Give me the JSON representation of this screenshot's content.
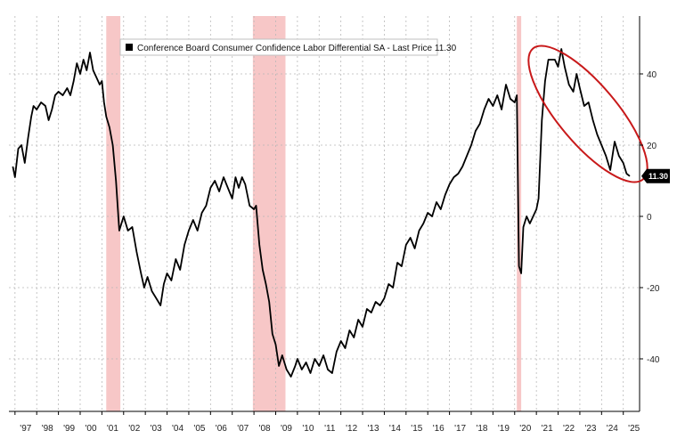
{
  "chart_data": {
    "type": "line",
    "title": "",
    "xlabel": "",
    "ylabel": "",
    "legend": "Conference Board Consumer Confidence Labor Differential SA - Last Price 11.30",
    "legend_position": "top-left",
    "last_value_label": "11.30",
    "last_value": 11.3,
    "ylim": [
      -54,
      54
    ],
    "y_ticks": [
      40,
      20,
      0,
      -20,
      -40
    ],
    "y_tick_labels": [
      "40",
      "20",
      "0",
      "-20",
      "-40"
    ],
    "x_ticks": [
      1997,
      1998,
      1999,
      2000,
      2001,
      2002,
      2003,
      2004,
      2005,
      2006,
      2007,
      2008,
      2009,
      2010,
      2011,
      2012,
      2013,
      2014,
      2015,
      2016,
      2017,
      2018,
      2019,
      2020,
      2021,
      2022,
      2023,
      2024,
      2025
    ],
    "x_tick_labels": [
      "'97",
      "'98",
      "'99",
      "'00",
      "'01",
      "'02",
      "'03",
      "'04",
      "'05",
      "'06",
      "'07",
      "'08",
      "'09",
      "'10",
      "'11",
      "'12",
      "'13",
      "'14",
      "'15",
      "'16",
      "'17",
      "'18",
      "'19",
      "'20",
      "'21",
      "'22",
      "'23",
      "'24",
      "'25"
    ],
    "grid": true,
    "recessions": [
      {
        "start": 2001.2,
        "end": 2001.85
      },
      {
        "start": 2007.95,
        "end": 2009.45
      },
      {
        "start": 2020.1,
        "end": 2020.3
      }
    ],
    "series": [
      {
        "name": "Conference Board Consumer Confidence Labor Differential SA",
        "color": "#000000",
        "points": [
          [
            1996.9,
            14
          ],
          [
            1997.0,
            11
          ],
          [
            1997.15,
            19
          ],
          [
            1997.3,
            20
          ],
          [
            1997.45,
            15
          ],
          [
            1997.6,
            22
          ],
          [
            1997.75,
            28
          ],
          [
            1997.85,
            31
          ],
          [
            1998.0,
            30
          ],
          [
            1998.2,
            32
          ],
          [
            1998.4,
            31
          ],
          [
            1998.55,
            27
          ],
          [
            1998.7,
            30
          ],
          [
            1998.85,
            34
          ],
          [
            1999.0,
            35
          ],
          [
            1999.2,
            34
          ],
          [
            1999.4,
            36
          ],
          [
            1999.55,
            34
          ],
          [
            1999.7,
            38
          ],
          [
            1999.85,
            43
          ],
          [
            2000.0,
            40
          ],
          [
            2000.15,
            44
          ],
          [
            2000.3,
            41
          ],
          [
            2000.45,
            46
          ],
          [
            2000.6,
            41
          ],
          [
            2000.75,
            39
          ],
          [
            2000.9,
            37
          ],
          [
            2001.0,
            38
          ],
          [
            2001.1,
            32
          ],
          [
            2001.2,
            28
          ],
          [
            2001.35,
            25
          ],
          [
            2001.5,
            20
          ],
          [
            2001.65,
            10
          ],
          [
            2001.8,
            -4
          ],
          [
            2002.0,
            0
          ],
          [
            2002.2,
            -4
          ],
          [
            2002.4,
            -3
          ],
          [
            2002.6,
            -10
          ],
          [
            2002.8,
            -16
          ],
          [
            2002.95,
            -20
          ],
          [
            2003.1,
            -17
          ],
          [
            2003.3,
            -21
          ],
          [
            2003.5,
            -23
          ],
          [
            2003.7,
            -25
          ],
          [
            2003.85,
            -19
          ],
          [
            2004.0,
            -16
          ],
          [
            2004.2,
            -18
          ],
          [
            2004.4,
            -12
          ],
          [
            2004.6,
            -15
          ],
          [
            2004.8,
            -8
          ],
          [
            2005.0,
            -4
          ],
          [
            2005.2,
            -1
          ],
          [
            2005.4,
            -4
          ],
          [
            2005.6,
            1
          ],
          [
            2005.8,
            3
          ],
          [
            2006.0,
            8
          ],
          [
            2006.2,
            10
          ],
          [
            2006.4,
            7
          ],
          [
            2006.6,
            11
          ],
          [
            2006.8,
            8
          ],
          [
            2007.0,
            5
          ],
          [
            2007.15,
            11
          ],
          [
            2007.3,
            8
          ],
          [
            2007.45,
            11
          ],
          [
            2007.6,
            9
          ],
          [
            2007.8,
            3
          ],
          [
            2008.0,
            2
          ],
          [
            2008.1,
            3
          ],
          [
            2008.25,
            -8
          ],
          [
            2008.4,
            -15
          ],
          [
            2008.55,
            -19
          ],
          [
            2008.7,
            -24
          ],
          [
            2008.85,
            -33
          ],
          [
            2009.0,
            -36
          ],
          [
            2009.15,
            -42
          ],
          [
            2009.3,
            -39
          ],
          [
            2009.5,
            -43
          ],
          [
            2009.7,
            -45
          ],
          [
            2009.9,
            -42
          ],
          [
            2010.0,
            -40
          ],
          [
            2010.2,
            -43
          ],
          [
            2010.4,
            -41
          ],
          [
            2010.6,
            -44
          ],
          [
            2010.8,
            -40
          ],
          [
            2011.0,
            -42
          ],
          [
            2011.2,
            -39
          ],
          [
            2011.4,
            -43
          ],
          [
            2011.6,
            -44
          ],
          [
            2011.8,
            -38
          ],
          [
            2012.0,
            -35
          ],
          [
            2012.2,
            -37
          ],
          [
            2012.4,
            -32
          ],
          [
            2012.6,
            -34
          ],
          [
            2012.8,
            -29
          ],
          [
            2013.0,
            -31
          ],
          [
            2013.2,
            -26
          ],
          [
            2013.4,
            -27
          ],
          [
            2013.6,
            -24
          ],
          [
            2013.8,
            -25
          ],
          [
            2014.0,
            -23
          ],
          [
            2014.2,
            -19
          ],
          [
            2014.4,
            -20
          ],
          [
            2014.6,
            -13
          ],
          [
            2014.8,
            -14
          ],
          [
            2015.0,
            -8
          ],
          [
            2015.2,
            -6
          ],
          [
            2015.4,
            -9
          ],
          [
            2015.6,
            -4
          ],
          [
            2015.8,
            -2
          ],
          [
            2016.0,
            1
          ],
          [
            2016.2,
            0
          ],
          [
            2016.4,
            4
          ],
          [
            2016.6,
            2
          ],
          [
            2016.8,
            6
          ],
          [
            2017.0,
            9
          ],
          [
            2017.2,
            11
          ],
          [
            2017.4,
            12
          ],
          [
            2017.6,
            14
          ],
          [
            2017.8,
            17
          ],
          [
            2018.0,
            20
          ],
          [
            2018.2,
            24
          ],
          [
            2018.4,
            26
          ],
          [
            2018.6,
            30
          ],
          [
            2018.8,
            33
          ],
          [
            2019.0,
            31
          ],
          [
            2019.2,
            34
          ],
          [
            2019.4,
            30
          ],
          [
            2019.6,
            37
          ],
          [
            2019.8,
            33
          ],
          [
            2020.0,
            32
          ],
          [
            2020.1,
            34
          ],
          [
            2020.2,
            -14
          ],
          [
            2020.3,
            -16
          ],
          [
            2020.4,
            -3
          ],
          [
            2020.55,
            0
          ],
          [
            2020.7,
            -2
          ],
          [
            2020.85,
            0
          ],
          [
            2021.0,
            2
          ],
          [
            2021.1,
            5
          ],
          [
            2021.25,
            27
          ],
          [
            2021.4,
            38
          ],
          [
            2021.55,
            44
          ],
          [
            2021.7,
            44
          ],
          [
            2021.85,
            44
          ],
          [
            2022.0,
            42
          ],
          [
            2022.15,
            47
          ],
          [
            2022.3,
            42
          ],
          [
            2022.5,
            37
          ],
          [
            2022.7,
            35
          ],
          [
            2022.85,
            40
          ],
          [
            2023.0,
            36
          ],
          [
            2023.2,
            31
          ],
          [
            2023.4,
            32
          ],
          [
            2023.6,
            27
          ],
          [
            2023.8,
            23
          ],
          [
            2024.0,
            20
          ],
          [
            2024.2,
            17
          ],
          [
            2024.4,
            13
          ],
          [
            2024.6,
            21
          ],
          [
            2024.8,
            17
          ],
          [
            2025.0,
            15
          ],
          [
            2025.15,
            12
          ],
          [
            2025.3,
            11.3
          ]
        ]
      }
    ]
  }
}
